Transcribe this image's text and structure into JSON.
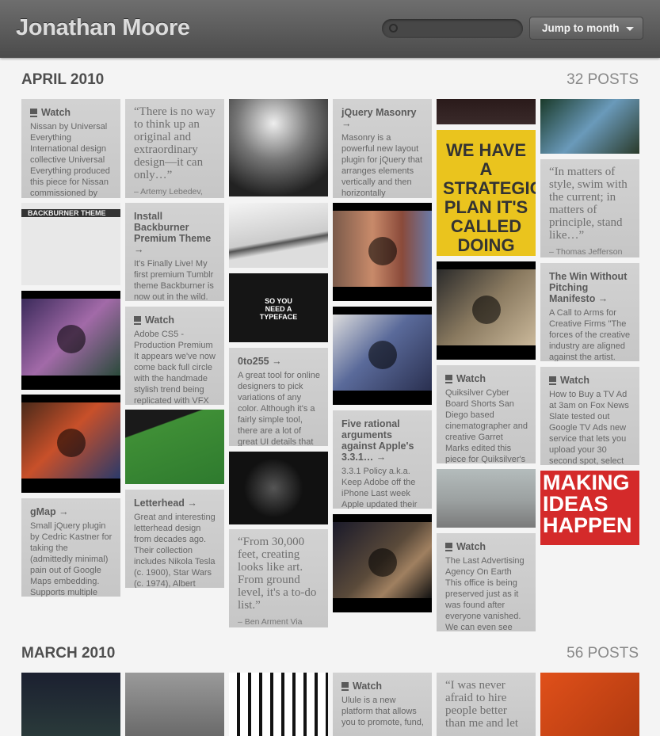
{
  "header": {
    "title": "Jonathan Moore",
    "jump_button": "Jump to month"
  },
  "sections": [
    {
      "month": "APRIL 2010",
      "count": "32 POSTS",
      "posts": [
        {
          "kind": "text",
          "title": "Watch",
          "body": "Nissan by Universal Everything International design collective Universal Everything produced this piece for Nissan commissioned by"
        },
        {
          "kind": "text",
          "title": "gMap →",
          "body": "Small jQuery plugin by Cedric Kastner for taking the (admittedly minimal) pain out of Google Maps embedding. Supports multiple locations,"
        },
        {
          "kind": "quote",
          "quote": "“There is no way to think up an original and extraordinary design—it can only…”",
          "source": "– Artemy Lebedev,"
        },
        {
          "kind": "text",
          "title": "Install Backburner Premium Theme →",
          "body": "It's Finally Live! My first premium Tumblr theme Backburner is now out in the wild.  The theme is based"
        },
        {
          "kind": "text",
          "title": "Watch",
          "body": "Adobe CS5 - Production Premium It appears we've now come back full circle with the handmade stylish trend being replicated with VFX in"
        },
        {
          "kind": "text",
          "title": "Letterhead →",
          "body": "Great and interesting letterhead design from decades ago.  Their collection includes Nikola Tesla (c. 1900), Star Wars (c. 1974), Albert"
        },
        {
          "kind": "text",
          "title": "0to255 →",
          "body": "A great tool for online designers to pick variations of any color.  Although it's a fairly simple tool, there are a lot of great UI details that"
        },
        {
          "kind": "quote",
          "quote": "“From 30,000 feet, creating looks like art. From ground level, it's a to-do list.”",
          "source": "– Ben Arment Via"
        },
        {
          "kind": "text",
          "title": "jQuery Masonry →",
          "body": "Masonry is a powerful new layout plugin for jQuery that arranges elements vertically and then horizontally"
        },
        {
          "kind": "text",
          "title": "Five rational arguments against Apple's 3.3.1… →",
          "body": "3.3.1 Policy a.k.a. Keep Adobe off the iPhone Last week Apple updated their"
        },
        {
          "kind": "text",
          "title": "Watch",
          "body": "Quiksilver Cyber Board Shorts San Diego based cinematographer and creative Garret Marks edited this piece for Quiksilver's"
        },
        {
          "kind": "text",
          "title": "Watch",
          "body": "The Last Advertising Agency On Earth This office is being preserved just as it was found after everyone vanished.  We can even see"
        },
        {
          "kind": "quote",
          "quote": "“In matters of style, swim with the current; in matters of principle, stand like…”",
          "source": "– Thomas Jefferson"
        },
        {
          "kind": "text",
          "title": "The Win Without Pitching Manifesto →",
          "body": "A Call to Arms for Creative Firms \"The forces of the creative industry are aligned against the artist."
        },
        {
          "kind": "text",
          "title": "Watch",
          "body": "How to Buy a TV Ad at 3am on Fox News Slate tested out Google TV Ads new service that lets you upload your 30 second spot, select"
        }
      ],
      "image_captions": [
        "BACKBURNER THEME",
        "SO YOU NEED A TYPEFACE",
        "WE HAVE A STRATEGIC PLAN IT'S CALLED DOING THINGS.",
        "MAKING IDEAS HAPPEN"
      ]
    },
    {
      "month": "MARCH 2010",
      "count": "56 POSTS",
      "posts": [
        {
          "kind": "text",
          "title": "Watch",
          "body": "Ulule is a new platform that allows you to promote, fund,"
        },
        {
          "kind": "quote",
          "quote": "“I was never afraid to hire people better than me and let"
        }
      ]
    }
  ]
}
